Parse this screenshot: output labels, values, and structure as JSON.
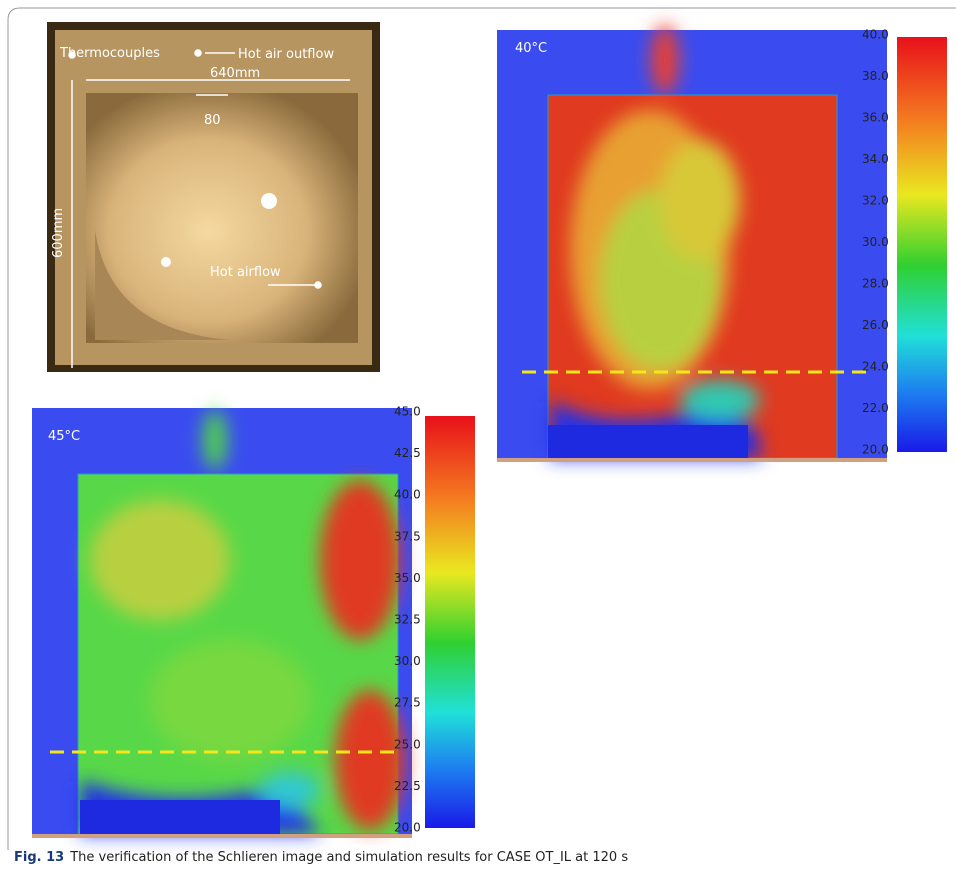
{
  "schlieren": {
    "thermocouples": "Thermocouples",
    "outflow": "Hot air outflow",
    "width": "640mm",
    "gap": "80",
    "height": "600mm",
    "airflow": "Hot airflow"
  },
  "sim_40": {
    "label": "40°C",
    "colorbar": [
      "40.0",
      "38.0",
      "36.0",
      "34.0",
      "32.0",
      "30.0",
      "28.0",
      "26.0",
      "24.0",
      "22.0",
      "20.0"
    ]
  },
  "sim_45": {
    "label": "45°C",
    "colorbar": [
      "45.0",
      "42.5",
      "40.0",
      "37.5",
      "35.0",
      "32.5",
      "30.0",
      "27.5",
      "25.0",
      "22.5",
      "20.0"
    ]
  },
  "caption": {
    "label": "Fig. 13",
    "text": "The verification of the Schlieren image and simulation results for CASE OT_IL at 120 s"
  }
}
